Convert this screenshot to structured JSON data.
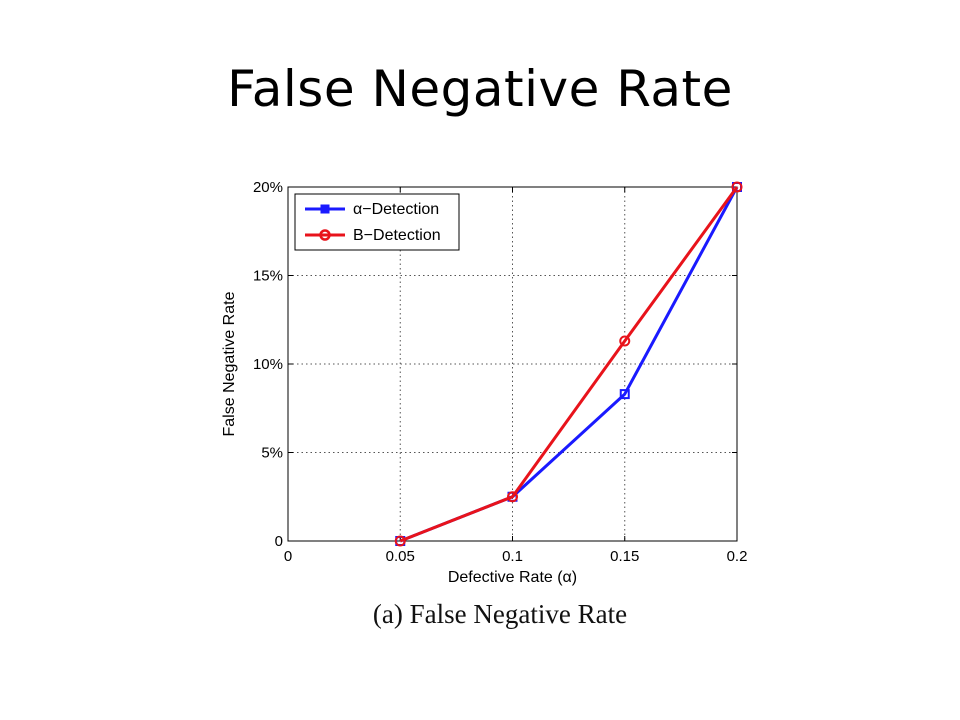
{
  "slide": {
    "title": "False Negative Rate",
    "caption": "(a)  False Negative Rate"
  },
  "chart_data": {
    "type": "line",
    "xlabel": "Defective Rate (α)",
    "ylabel": "False Negative Rate",
    "xlim": [
      0,
      0.2
    ],
    "ylim": [
      0,
      20
    ],
    "x_ticks": [
      0,
      0.05,
      0.1,
      0.15,
      0.2
    ],
    "x_tick_labels": [
      "0",
      "0.05",
      "0.1",
      "0.15",
      "0.2"
    ],
    "y_ticks": [
      0,
      5,
      10,
      15,
      20
    ],
    "y_tick_labels": [
      "0",
      "5%",
      "10%",
      "15%",
      "20%"
    ],
    "grid": true,
    "legend_position": "top-left",
    "series": [
      {
        "name": "α−Detection",
        "color": "#1a1aff",
        "marker": "square",
        "x": [
          0.05,
          0.1,
          0.15,
          0.2
        ],
        "y": [
          0,
          2.5,
          8.3,
          20
        ]
      },
      {
        "name": "B−Detection",
        "color": "#e8131b",
        "marker": "circle",
        "x": [
          0.05,
          0.1,
          0.15,
          0.2
        ],
        "y": [
          0,
          2.5,
          11.3,
          20
        ]
      }
    ]
  }
}
